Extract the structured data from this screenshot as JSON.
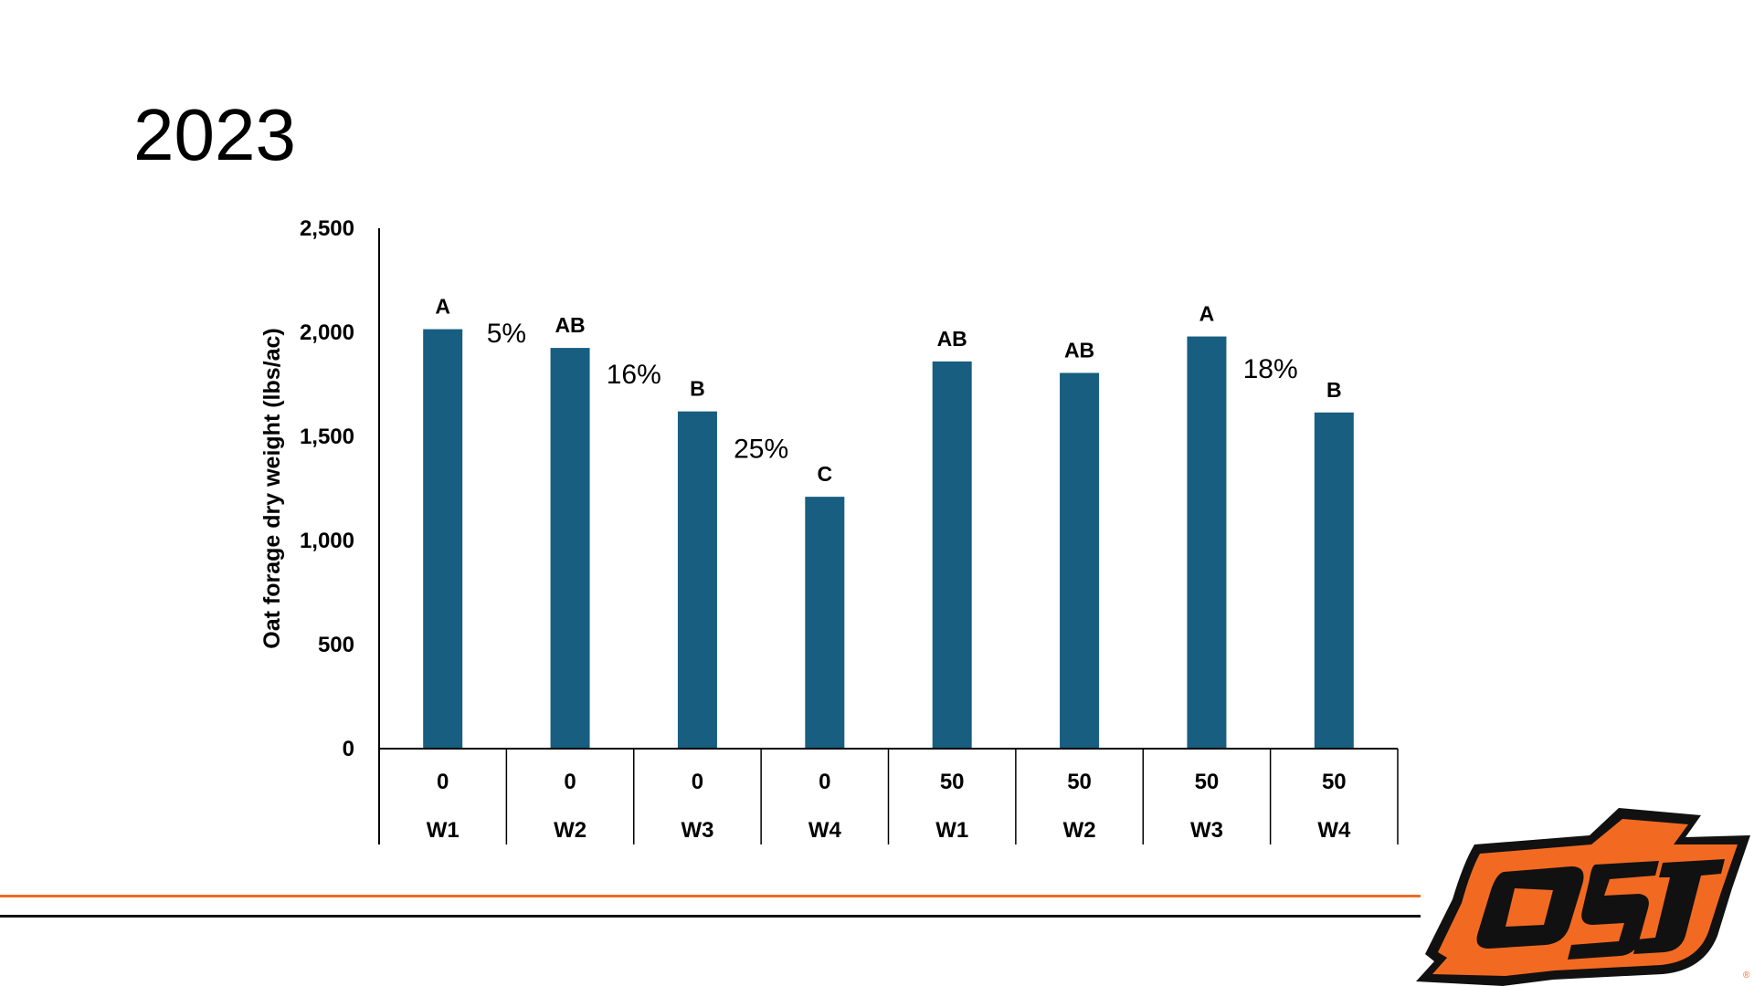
{
  "slide": {
    "title": "2023"
  },
  "logo": {
    "text": "OSU",
    "registered_mark": "®",
    "colors": {
      "orange": "#F26A21",
      "black": "#111111"
    }
  },
  "colors": {
    "bar": "#175E80",
    "axis": "#000000",
    "footer_orange": "#F26A21",
    "footer_black": "#111111"
  },
  "chart_data": {
    "type": "bar",
    "ylabel": "Oat forage dry weight (lbs/ac)",
    "ylim": [
      0,
      2500
    ],
    "yticks": [
      0,
      500,
      1000,
      1500,
      2000,
      2500
    ],
    "ytick_labels": [
      "0",
      "500",
      "1,000",
      "1,500",
      "2,000",
      "2,500"
    ],
    "grid": false,
    "categories": [
      {
        "row1": "0",
        "row2": "W1"
      },
      {
        "row1": "0",
        "row2": "W2"
      },
      {
        "row1": "0",
        "row2": "W3"
      },
      {
        "row1": "0",
        "row2": "W4"
      },
      {
        "row1": "50",
        "row2": "W1"
      },
      {
        "row1": "50",
        "row2": "W2"
      },
      {
        "row1": "50",
        "row2": "W3"
      },
      {
        "row1": "50",
        "row2": "W4"
      }
    ],
    "values": [
      2015,
      1925,
      1620,
      1210,
      1860,
      1805,
      1980,
      1615
    ],
    "data_labels": [
      "A",
      "AB",
      "B",
      "C",
      "AB",
      "AB",
      "A",
      "B"
    ],
    "annotations": [
      {
        "text": "5%",
        "between": [
          0,
          1
        ]
      },
      {
        "text": "16%",
        "between": [
          1,
          2
        ]
      },
      {
        "text": "25%",
        "between": [
          2,
          3
        ]
      },
      {
        "text": "18%",
        "between": [
          6,
          7
        ]
      }
    ]
  }
}
